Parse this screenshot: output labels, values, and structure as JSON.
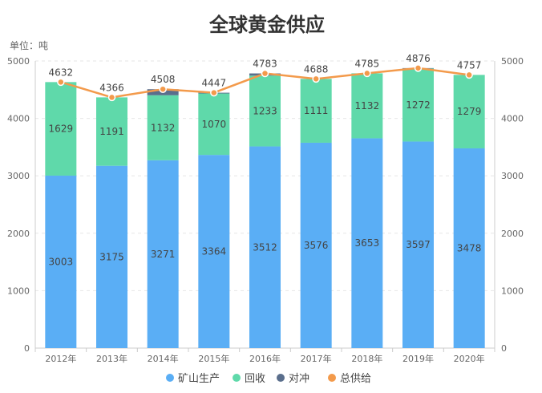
{
  "chart_data": {
    "type": "bar",
    "title": "全球黄金供应",
    "unit_label": "单位：吨",
    "categories": [
      "2012年",
      "2013年",
      "2014年",
      "2015年",
      "2016年",
      "2017年",
      "2018年",
      "2019年",
      "2020年"
    ],
    "series": [
      {
        "name": "矿山生产",
        "kind": "bar",
        "color": "#5aaef5",
        "values": [
          3003,
          3175,
          3271,
          3364,
          3512,
          3576,
          3653,
          3597,
          3478
        ]
      },
      {
        "name": "回收",
        "kind": "bar",
        "color": "#5fd9aa",
        "values": [
          1629,
          1191,
          1132,
          1070,
          1233,
          1111,
          1132,
          1272,
          1279
        ]
      },
      {
        "name": "对冲",
        "kind": "bar",
        "color": "#5a6e8c",
        "values": [
          0,
          0,
          105,
          13,
          38,
          1,
          0,
          7,
          0
        ]
      },
      {
        "name": "总供给",
        "kind": "line",
        "color": "#f39a4b",
        "values": [
          4632,
          4366,
          4508,
          4447,
          4783,
          4688,
          4785,
          4876,
          4757
        ]
      }
    ],
    "y_left": {
      "min": 0,
      "max": 5000,
      "ticks": [
        0,
        1000,
        2000,
        3000,
        4000,
        5000
      ]
    },
    "y_right": {
      "min": 0,
      "max": 5000,
      "ticks": [
        0,
        1000,
        2000,
        3000,
        4000,
        5000
      ]
    },
    "grid": true,
    "legend_position": "bottom-center"
  }
}
